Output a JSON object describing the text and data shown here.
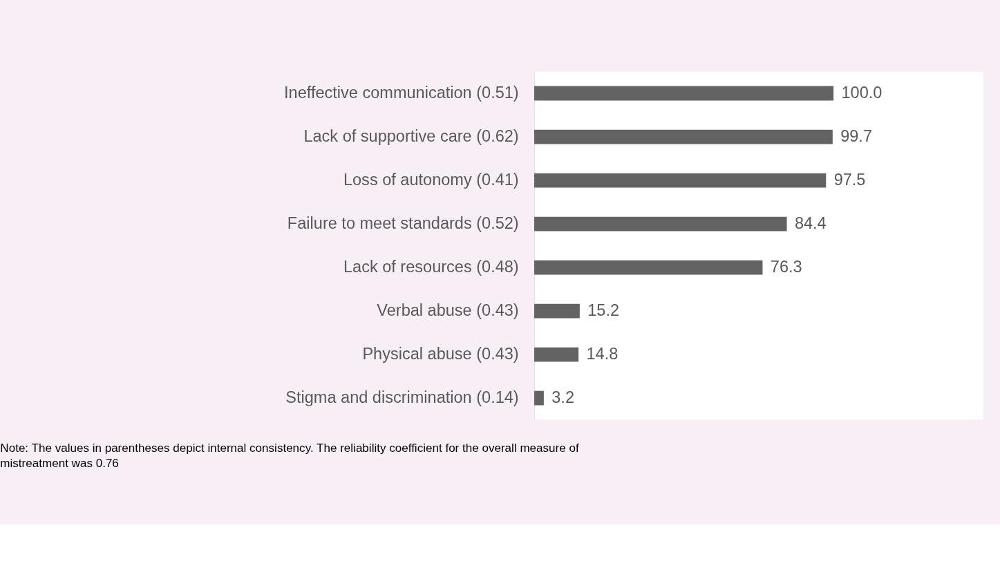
{
  "chart_data": {
    "type": "bar",
    "orientation": "horizontal",
    "categories": [
      "Ineffective communication (0.51)",
      "Lack of supportive care (0.62)",
      "Loss of autonomy (0.41)",
      "Failure to meet standards (0.52)",
      "Lack of resources (0.48)",
      "Verbal abuse (0.43)",
      "Physical abuse (0.43)",
      "Stigma and discrimination (0.14)"
    ],
    "values": [
      100.0,
      99.7,
      97.5,
      84.4,
      76.3,
      15.2,
      14.8,
      3.2
    ],
    "color": "#636363",
    "value_labels": [
      "100.0",
      "99.7",
      "97.5",
      "84.4",
      "76.3",
      "15.2",
      "14.8",
      "3.2"
    ],
    "grid": false,
    "annotations": [
      "Note: The values in parentheses depict internal consistency. The reliability coefficient for the overall measure of mistreatment was 0.76"
    ]
  }
}
